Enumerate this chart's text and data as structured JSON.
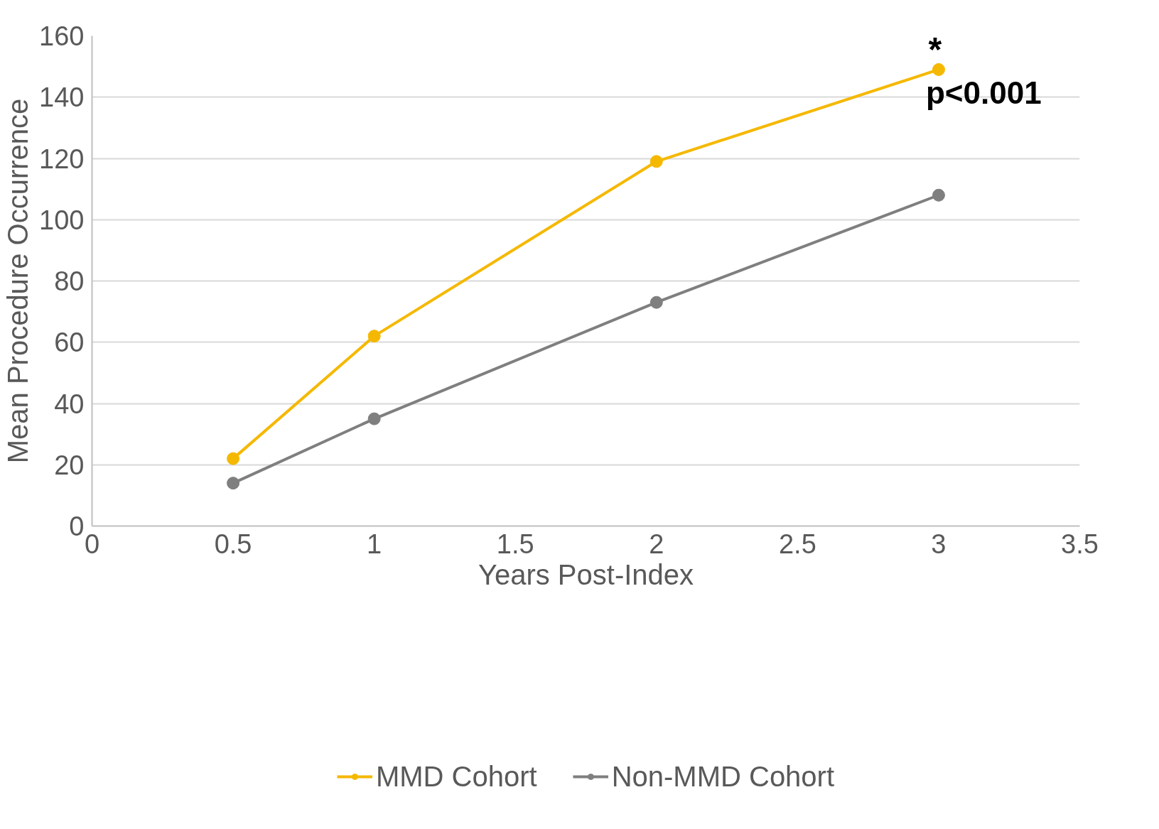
{
  "chart_data": {
    "type": "line",
    "xlabel": "Years Post-Index",
    "ylabel": "Mean Procedure Occurrence",
    "xlim": [
      0,
      3.5
    ],
    "xticks": [
      0,
      0.5,
      1,
      1.5,
      2,
      2.5,
      3,
      3.5
    ],
    "ylim": [
      0,
      160
    ],
    "yticks": [
      0,
      20,
      40,
      60,
      80,
      100,
      120,
      140,
      160
    ],
    "grid": "y",
    "legend": "bottom",
    "marker": "circle",
    "line_style": "solid",
    "series": [
      {
        "name": "MMD Cohort",
        "color": "#f5b800",
        "x": [
          0.5,
          1,
          2,
          3
        ],
        "values": [
          22,
          62,
          119,
          149
        ]
      },
      {
        "name": "Non-MMD Cohort",
        "color": "#7f7f7f",
        "x": [
          0.5,
          1,
          2,
          3
        ],
        "values": [
          14,
          35,
          73,
          108
        ]
      }
    ],
    "annotations": [
      {
        "text": "*",
        "x": 3,
        "y": 149
      },
      {
        "text": "p<0.001",
        "x": 3,
        "y": 149
      }
    ]
  }
}
